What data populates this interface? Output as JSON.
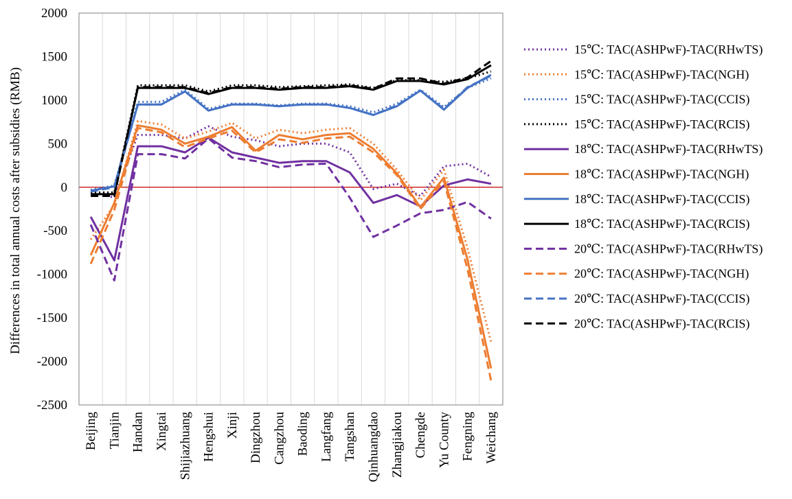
{
  "chart_data": {
    "type": "line",
    "title": "",
    "xlabel": "",
    "ylabel": "Differences in total annual costs after subsidies (RMB)",
    "ylim": [
      -2500,
      2000
    ],
    "yticks": [
      -2500,
      -2000,
      -1500,
      -1000,
      -500,
      0,
      500,
      1000,
      1500,
      2000
    ],
    "grid": "vertical",
    "legend_position": "right",
    "zero_line_color": "#c00000",
    "categories": [
      "Beijing",
      "Tianjin",
      "Handan",
      "Xingtai",
      "Shijiazhuang",
      "Hengshui",
      "Xinji",
      "Dingzhou",
      "Cangzhou",
      "Baoding",
      "Langfang",
      "Tangshan",
      "Qinhuangdao",
      "Zhangjiakou",
      "Chengde",
      "Yu County",
      "Fengning",
      "Weichang"
    ],
    "series": [
      {
        "name": "15℃: TAC(ASHPwF)-TAC(RHwTS)",
        "color": "#7030a0",
        "style": "dotted",
        "values": [
          -50,
          -120,
          600,
          600,
          560,
          700,
          580,
          540,
          470,
          500,
          500,
          400,
          -20,
          40,
          -100,
          240,
          270,
          120
        ]
      },
      {
        "name": "15℃: TAC(ASHPwF)-TAC(NGH)",
        "color": "#ed7d31",
        "style": "dotted",
        "values": [
          -600,
          -200,
          760,
          720,
          560,
          640,
          740,
          560,
          660,
          620,
          660,
          680,
          500,
          200,
          -150,
          200,
          -700,
          -1780
        ]
      },
      {
        "name": "15℃: TAC(ASHPwF)-TAC(CCIS)",
        "color": "#4472c4",
        "style": "dotted",
        "values": [
          -30,
          20,
          980,
          980,
          1120,
          900,
          960,
          960,
          940,
          960,
          960,
          930,
          860,
          960,
          1120,
          920,
          1140,
          1250
        ]
      },
      {
        "name": "15℃: TAC(ASHPwF)-TAC(RCIS)",
        "color": "#000000",
        "style": "dotted",
        "values": [
          -60,
          -60,
          1170,
          1170,
          1170,
          1100,
          1170,
          1170,
          1150,
          1160,
          1170,
          1180,
          1140,
          1230,
          1230,
          1210,
          1250,
          1330
        ]
      },
      {
        "name": "18℃: TAC(ASHPwF)-TAC(RHwTS)",
        "color": "#7030a0",
        "style": "solid",
        "values": [
          -340,
          -840,
          470,
          470,
          400,
          570,
          400,
          340,
          280,
          300,
          300,
          170,
          -180,
          -90,
          -220,
          20,
          90,
          40
        ]
      },
      {
        "name": "18℃: TAC(ASHPwF)-TAC(NGH)",
        "color": "#ed7d31",
        "style": "solid",
        "values": [
          -780,
          -180,
          710,
          660,
          500,
          580,
          690,
          420,
          600,
          550,
          600,
          620,
          440,
          160,
          -230,
          110,
          -830,
          -2080
        ]
      },
      {
        "name": "18℃: TAC(ASHPwF)-TAC(CCIS)",
        "color": "#4472c4",
        "style": "solid",
        "values": [
          -40,
          10,
          950,
          950,
          1100,
          880,
          950,
          950,
          930,
          950,
          950,
          910,
          830,
          930,
          1110,
          890,
          1140,
          1290
        ]
      },
      {
        "name": "18℃: TAC(ASHPwF)-TAC(RCIS)",
        "color": "#000000",
        "style": "solid",
        "values": [
          -80,
          -80,
          1140,
          1140,
          1140,
          1070,
          1140,
          1140,
          1120,
          1140,
          1140,
          1160,
          1120,
          1220,
          1220,
          1180,
          1240,
          1400
        ]
      },
      {
        "name": "20℃: TAC(ASHPwF)-TAC(RHwTS)",
        "color": "#7030a0",
        "style": "dashed",
        "values": [
          -430,
          -1070,
          380,
          380,
          330,
          560,
          340,
          300,
          230,
          260,
          270,
          -120,
          -570,
          -440,
          -300,
          -260,
          -170,
          -360
        ]
      },
      {
        "name": "20℃: TAC(ASHPwF)-TAC(NGH)",
        "color": "#ed7d31",
        "style": "dashed",
        "values": [
          -880,
          -260,
          680,
          630,
          460,
          560,
          650,
          400,
          550,
          510,
          560,
          580,
          400,
          140,
          -250,
          70,
          -940,
          -2220
        ]
      },
      {
        "name": "20℃: TAC(ASHPwF)-TAC(CCIS)",
        "color": "#4472c4",
        "style": "dashed",
        "values": [
          -50,
          0,
          950,
          950,
          1100,
          880,
          950,
          950,
          930,
          950,
          950,
          910,
          830,
          940,
          1110,
          900,
          1150,
          1280
        ]
      },
      {
        "name": "20℃: TAC(ASHPwF)-TAC(RCIS)",
        "color": "#000000",
        "style": "dashed",
        "values": [
          -100,
          -100,
          1150,
          1150,
          1150,
          1080,
          1150,
          1150,
          1130,
          1150,
          1150,
          1170,
          1130,
          1250,
          1250,
          1190,
          1260,
          1450
        ]
      }
    ]
  }
}
